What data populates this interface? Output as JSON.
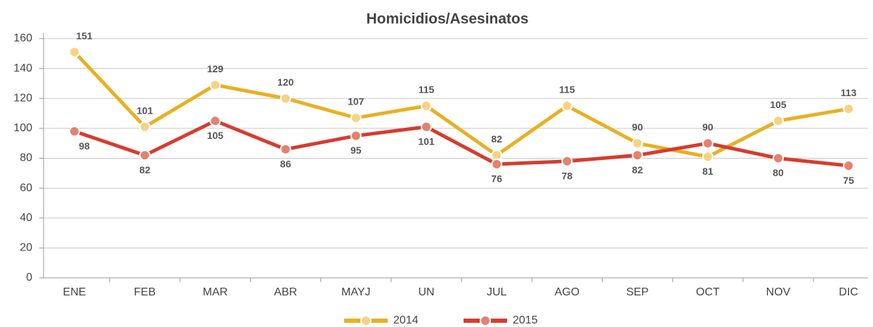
{
  "chart_data": {
    "type": "line",
    "title": "Homicidios/Asesinatos",
    "categories": [
      "ENE",
      "FEB",
      "MAR",
      "ABR",
      "MAYJ",
      "UN",
      "JUL",
      "AGO",
      "SEP",
      "OCT",
      "NOV",
      "DIC"
    ],
    "series": [
      {
        "name": "2014",
        "color": "#e8b022",
        "marker_color": "#f8d283",
        "values": [
          151,
          101,
          129,
          120,
          107,
          115,
          82,
          115,
          90,
          81,
          105,
          113
        ]
      },
      {
        "name": "2015",
        "color": "#d63c2f",
        "marker_color": "#e3826f",
        "values": [
          98,
          82,
          105,
          86,
          95,
          101,
          76,
          78,
          82,
          90,
          80,
          75
        ]
      }
    ],
    "ylim": [
      0,
      160
    ],
    "yticks": [
      0,
      20,
      40,
      60,
      80,
      100,
      120,
      140,
      160
    ],
    "grid": true,
    "legend": "bottom"
  }
}
